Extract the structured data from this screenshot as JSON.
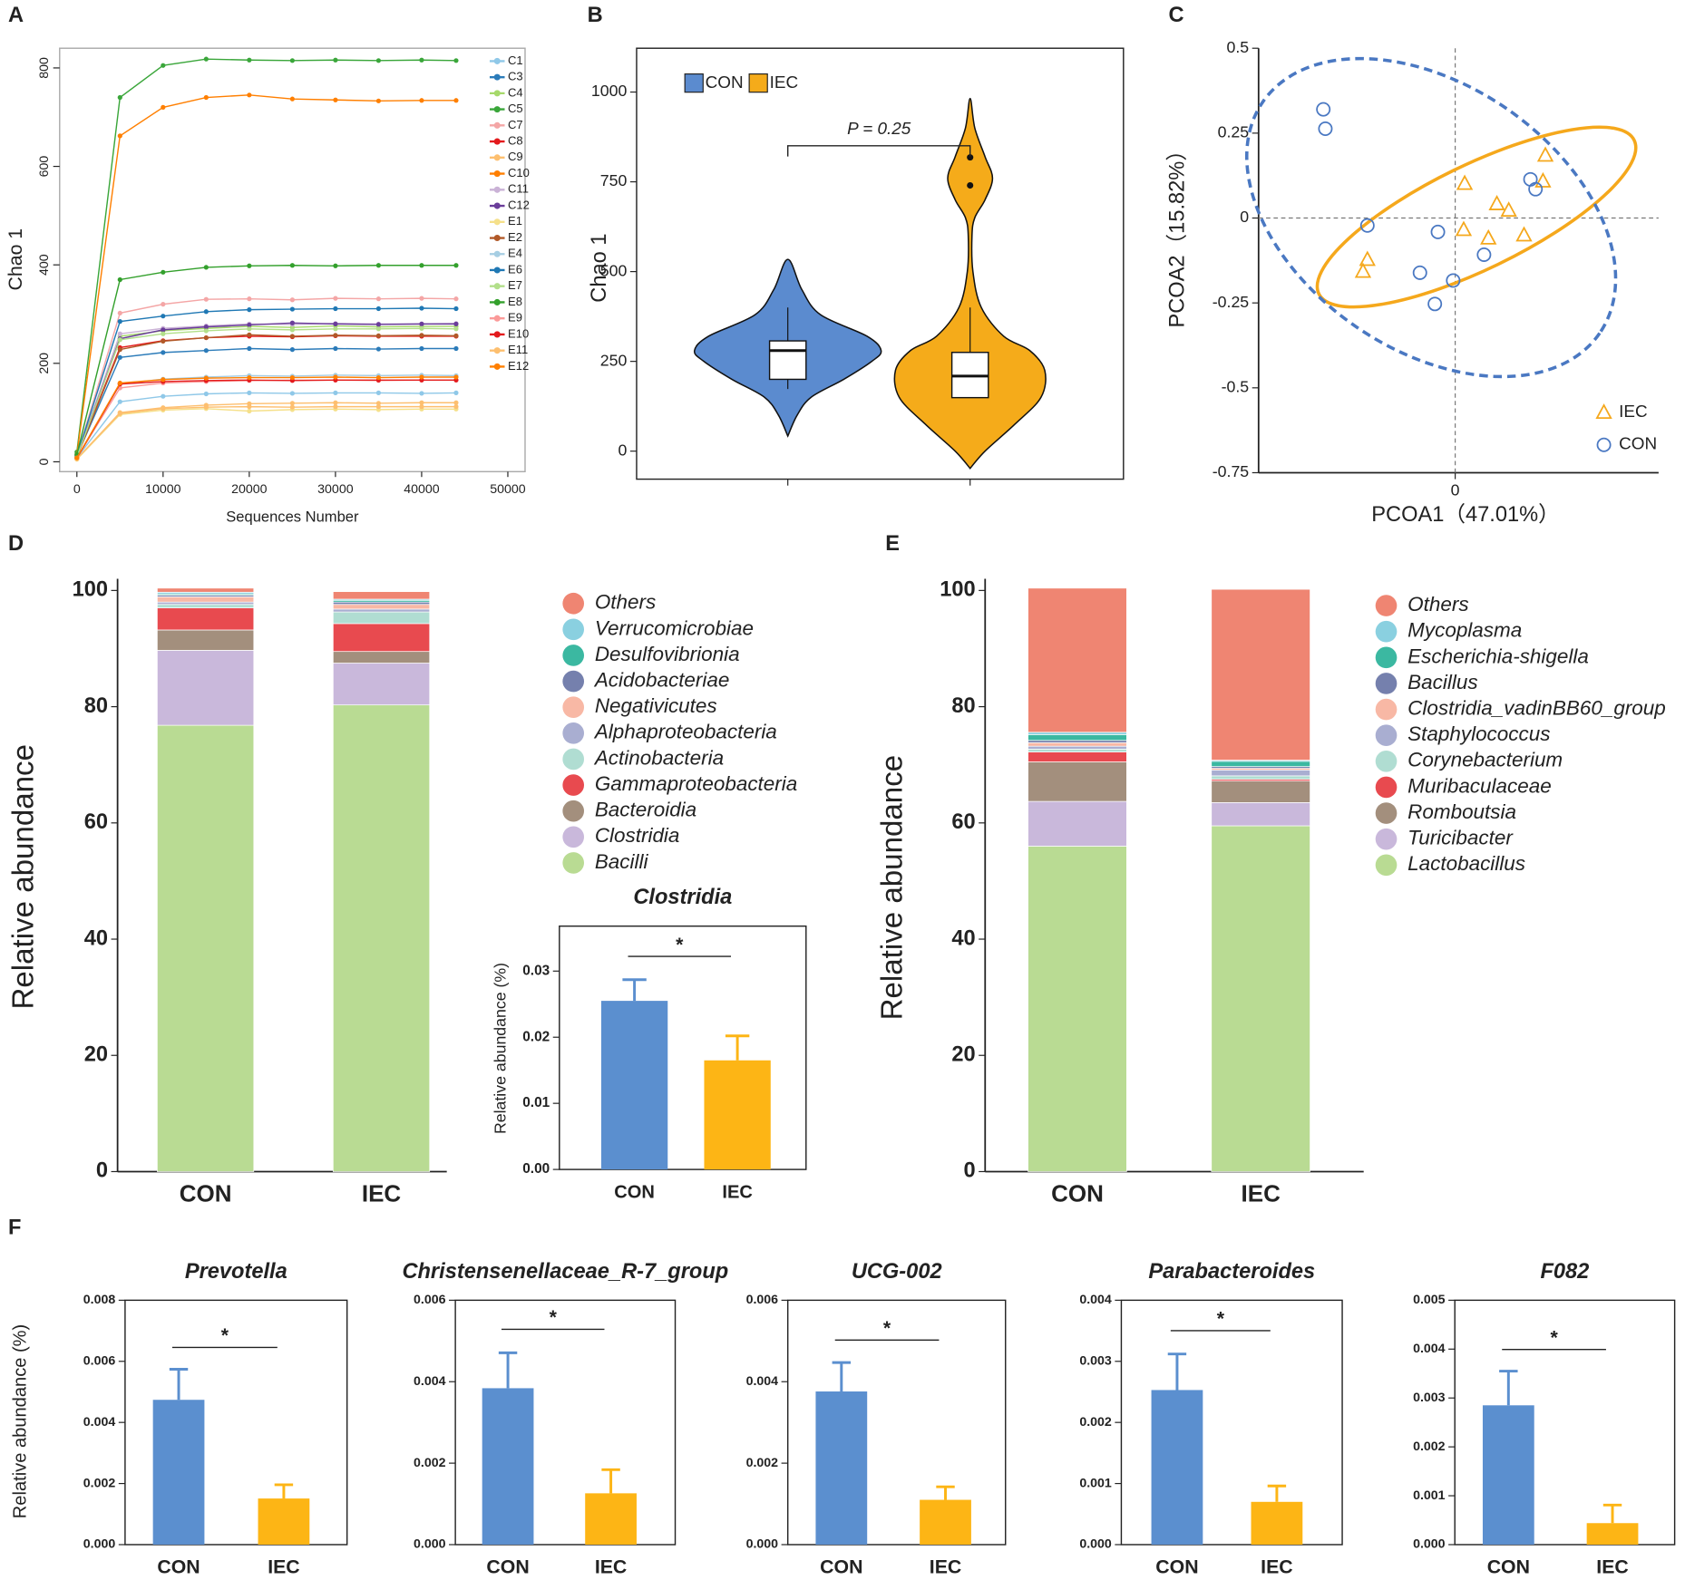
{
  "panels": [
    "A",
    "B",
    "C",
    "D",
    "E",
    "F"
  ],
  "chart_data": [
    {
      "type": "line",
      "xlabel": "Sequences Number",
      "ylabel": "Chao 1",
      "x": [
        0,
        5000,
        10000,
        15000,
        20000,
        25000,
        30000,
        35000,
        40000,
        44000
      ],
      "xlim": [
        -2000,
        52000
      ],
      "xticks": [
        0,
        10000,
        20000,
        30000,
        40000,
        50000
      ],
      "ylim": [
        -20,
        840
      ],
      "yticks": [
        0,
        200,
        400,
        600,
        800
      ],
      "series": [
        {
          "name": "C1",
          "color": "#8fc8e8",
          "values": [
            8,
            122,
            133,
            138,
            140,
            139,
            140,
            140,
            139,
            140
          ]
        },
        {
          "name": "C3",
          "color": "#2b7bb9",
          "values": [
            12,
            212,
            222,
            226,
            230,
            228,
            230,
            229,
            230,
            230
          ]
        },
        {
          "name": "C4",
          "color": "#a6d96a",
          "values": [
            10,
            255,
            266,
            271,
            275,
            273,
            276,
            274,
            275,
            275
          ]
        },
        {
          "name": "C5",
          "color": "#3aa63a",
          "values": [
            20,
            740,
            805,
            818,
            816,
            815,
            816,
            815,
            816,
            815
          ]
        },
        {
          "name": "C7",
          "color": "#f4a6a6",
          "values": [
            12,
            302,
            320,
            330,
            331,
            329,
            332,
            331,
            332,
            331
          ]
        },
        {
          "name": "C8",
          "color": "#e31a1c",
          "values": [
            10,
            232,
            246,
            252,
            255,
            254,
            256,
            255,
            255,
            255
          ]
        },
        {
          "name": "C9",
          "color": "#fdbf6f",
          "values": [
            6,
            100,
            110,
            115,
            118,
            119,
            120,
            119,
            120,
            120
          ]
        },
        {
          "name": "C10",
          "color": "#ff7f00",
          "values": [
            15,
            662,
            720,
            740,
            745,
            737,
            735,
            733,
            734,
            734
          ]
        },
        {
          "name": "C11",
          "color": "#cab2d6",
          "values": [
            10,
            260,
            271,
            276,
            280,
            279,
            281,
            280,
            280,
            281
          ]
        },
        {
          "name": "C12",
          "color": "#6a3d9a",
          "values": [
            11,
            250,
            268,
            274,
            278,
            282,
            280,
            279,
            280,
            280
          ]
        },
        {
          "name": "E1",
          "color": "#f5e08a",
          "values": [
            5,
            96,
            105,
            108,
            103,
            106,
            107,
            106,
            107,
            107
          ]
        },
        {
          "name": "E2",
          "color": "#b15928",
          "values": [
            10,
            228,
            245,
            252,
            258,
            255,
            257,
            256,
            257,
            256
          ]
        },
        {
          "name": "E4",
          "color": "#a6cee3",
          "values": [
            8,
            158,
            168,
            172,
            175,
            174,
            176,
            175,
            176,
            175
          ]
        },
        {
          "name": "E6",
          "color": "#1f78b4",
          "values": [
            12,
            285,
            296,
            305,
            309,
            310,
            311,
            311,
            312,
            311
          ]
        },
        {
          "name": "E7",
          "color": "#b2df8a",
          "values": [
            10,
            248,
            260,
            266,
            270,
            268,
            270,
            270,
            271,
            270
          ]
        },
        {
          "name": "E8",
          "color": "#33a02c",
          "values": [
            15,
            370,
            385,
            395,
            398,
            399,
            398,
            399,
            399,
            399
          ]
        },
        {
          "name": "E9",
          "color": "#fb9a99",
          "values": [
            8,
            150,
            160,
            163,
            165,
            166,
            166,
            165,
            166,
            166
          ]
        },
        {
          "name": "E10",
          "color": "#e31a1c",
          "values": [
            7,
            158,
            163,
            165,
            166,
            165,
            166,
            166,
            166,
            166
          ]
        },
        {
          "name": "E11",
          "color": "#fdbf6f",
          "values": [
            6,
            98,
            108,
            111,
            112,
            111,
            112,
            112,
            112,
            112
          ]
        },
        {
          "name": "E12",
          "color": "#ff7f00",
          "values": [
            8,
            160,
            167,
            170,
            171,
            171,
            172,
            171,
            172,
            172
          ]
        }
      ]
    },
    {
      "type": "violin",
      "ylabel": "Chao 1",
      "annotation": "P = 0.25",
      "ylim": [
        -78,
        1122
      ],
      "yticks": [
        0,
        250,
        500,
        750,
        1000
      ],
      "series": [
        {
          "name": "CON",
          "color": "#5b8bcf",
          "density_y": [
            42,
            100,
            150,
            200,
            250,
            280,
            320,
            380,
            450,
            534
          ],
          "density": [
            0,
            0.1,
            0.25,
            0.6,
            0.9,
            1.0,
            0.85,
            0.35,
            0.15,
            0
          ],
          "q1": 200,
          "median": 280,
          "q3": 307,
          "whisker_low": 173,
          "whisker_high": 400
        },
        {
          "name": "IEC",
          "color": "#f5ab1a",
          "density_y": [
            -48,
            0,
            75,
            150,
            225,
            280,
            320,
            400,
            500,
            600,
            650,
            700,
            760,
            820,
            900,
            982
          ],
          "density": [
            0,
            0.16,
            0.48,
            0.76,
            0.8,
            0.64,
            0.36,
            0.12,
            0.03,
            0.02,
            0.05,
            0.16,
            0.24,
            0.16,
            0.05,
            0
          ],
          "q1": 149,
          "median": 209,
          "q3": 275,
          "whisker_low": 149,
          "whisker_high": 400,
          "outliers": [
            818,
            740
          ]
        }
      ]
    },
    {
      "type": "scatter",
      "xlabel": "PCOA1（47.01%）",
      "ylabel": "PCOA2（15.82%）",
      "xlim": [
        -0.58,
        0.6
      ],
      "xticks": [
        0
      ],
      "ylim": [
        -0.75,
        0.5
      ],
      "yticks": [
        0.5,
        0.25,
        0,
        -0.25,
        -0.5,
        -0.75
      ],
      "zero_lines": true,
      "series": [
        {
          "name": "IEC",
          "color": "#f5a81c",
          "marker": "triangle",
          "ellipse": "solid",
          "x": [
            0.266,
            0.259,
            0.028,
            0.123,
            0.158,
            0.025,
            0.098,
            0.203,
            -0.259,
            -0.272
          ],
          "y": [
            0.184,
            0.108,
            0.101,
            0.041,
            0.022,
            -0.035,
            -0.06,
            -0.051,
            -0.123,
            -0.158
          ]
        },
        {
          "name": "CON",
          "color": "#4a78c2",
          "marker": "circle",
          "ellipse": "dashed",
          "x": [
            -0.389,
            -0.383,
            -0.259,
            -0.104,
            -0.051,
            -0.06,
            -0.006,
            0.085,
            0.222,
            0.237
          ],
          "y": [
            0.32,
            0.263,
            -0.022,
            -0.161,
            -0.041,
            -0.253,
            -0.184,
            -0.108,
            0.114,
            0.085
          ]
        }
      ]
    },
    {
      "type": "stacked_bar",
      "ylabel": "Relative abundance",
      "categories": [
        "CON",
        "IEC"
      ],
      "ylim": [
        0,
        102
      ],
      "yticks": [
        0,
        20,
        40,
        60,
        80,
        100
      ],
      "series": [
        {
          "name": "Bacilli",
          "color": "#b9db93",
          "values": [
            76.8,
            80.3
          ]
        },
        {
          "name": "Clostridia",
          "color": "#c9b8db",
          "values": [
            12.9,
            7.2
          ]
        },
        {
          "name": "Bacteroidia",
          "color": "#a38f7d",
          "values": [
            3.5,
            2.0
          ]
        },
        {
          "name": "Gammaproteobacteria",
          "color": "#e84a4f",
          "values": [
            3.8,
            4.8
          ]
        },
        {
          "name": "Actinobacteria",
          "color": "#b0ddd2",
          "values": [
            0.6,
            2.0
          ]
        },
        {
          "name": "Alphaproteobacteria",
          "color": "#a9aed1",
          "values": [
            0.4,
            0.5
          ]
        },
        {
          "name": "Negativicutes",
          "color": "#f8b8a5",
          "values": [
            0.9,
            0.8
          ]
        },
        {
          "name": "Acidobacteriae",
          "color": "#7580ad",
          "values": [
            0.3,
            0.4
          ]
        },
        {
          "name": "Desulfovibrionia",
          "color": "#3bb8a1",
          "values": [
            0.2,
            0.3
          ]
        },
        {
          "name": "Verrucomicrobiae",
          "color": "#8ad0e0",
          "values": [
            0.3,
            0.2
          ]
        },
        {
          "name": "Others",
          "color": "#ef8572",
          "values": [
            0.7,
            1.3
          ]
        }
      ]
    },
    {
      "type": "bar",
      "title": "Clostridia",
      "ylabel": "Relative abundance (%)",
      "annotation": "*",
      "categories": [
        "CON",
        "IEC"
      ],
      "values": [
        0.0255,
        0.0165
      ],
      "errors": [
        0.0032,
        0.0037
      ],
      "colors": [
        "#5b8fcf",
        "#fdb515"
      ],
      "ylim": [
        0,
        0.0368
      ],
      "yticks": [
        {
          "value": 0,
          "label": "0.00"
        },
        0.01,
        0.02,
        0.03
      ]
    },
    {
      "type": "stacked_bar",
      "ylabel": "Relative abundance",
      "categories": [
        "CON",
        "IEC"
      ],
      "ylim": [
        0,
        102
      ],
      "yticks": [
        0,
        20,
        40,
        60,
        80,
        100
      ],
      "series": [
        {
          "name": "Lactobacillus",
          "color": "#b9db93",
          "values": [
            56.0,
            59.5
          ]
        },
        {
          "name": "Turicibacter",
          "color": "#c9b8db",
          "values": [
            7.7,
            4.0
          ]
        },
        {
          "name": "Romboutsia",
          "color": "#a38f7d",
          "values": [
            6.8,
            3.7
          ]
        },
        {
          "name": "Muribaculaceae",
          "color": "#e84a4f",
          "values": [
            1.7,
            0.3
          ]
        },
        {
          "name": "Corynebacterium",
          "color": "#b0ddd2",
          "values": [
            0.5,
            0.6
          ]
        },
        {
          "name": "Staphylococcus",
          "color": "#a9aed1",
          "values": [
            0.5,
            1.0
          ]
        },
        {
          "name": "Clostridia_vadinBB60_group",
          "color": "#f8b8a5",
          "values": [
            0.6,
            0.3
          ]
        },
        {
          "name": "Bacillus",
          "color": "#7580ad",
          "values": [
            0.4,
            0.3
          ]
        },
        {
          "name": "Escherichia-shigella",
          "color": "#3bb8a1",
          "values": [
            1.0,
            0.9
          ]
        },
        {
          "name": "Mycoplasma",
          "color": "#8ad0e0",
          "values": [
            0.4,
            0.2
          ]
        },
        {
          "name": "Others",
          "color": "#ef8572",
          "values": [
            24.8,
            29.4
          ]
        }
      ]
    },
    {
      "type": "bar",
      "title": "Prevotella",
      "ylabel": "Relative abundance (%)",
      "annotation": "*",
      "categories": [
        "CON",
        "IEC"
      ],
      "values": [
        0.00474,
        0.00151
      ],
      "errors": [
        0.001,
        0.00045
      ],
      "colors": [
        "#5b8fcf",
        "#fdb515"
      ],
      "ylim": [
        0,
        0.008
      ],
      "yticks": [
        {
          "value": 0,
          "label": "0.000"
        },
        0.002,
        0.004,
        0.006,
        0.008
      ]
    },
    {
      "type": "bar",
      "title": "Christensenellaceae_R-7_group",
      "annotation": "*",
      "categories": [
        "CON",
        "IEC"
      ],
      "values": [
        0.00384,
        0.00126
      ],
      "errors": [
        0.00087,
        0.00058
      ],
      "colors": [
        "#5b8fcf",
        "#fdb515"
      ],
      "ylim": [
        0,
        0.006
      ],
      "yticks": [
        {
          "value": 0,
          "label": "0.000"
        },
        0.002,
        0.004,
        0.006
      ]
    },
    {
      "type": "bar",
      "title": "UCG-002",
      "annotation": "*",
      "categories": [
        "CON",
        "IEC"
      ],
      "values": [
        0.00376,
        0.0011
      ],
      "errors": [
        0.00071,
        0.00032
      ],
      "colors": [
        "#5b8fcf",
        "#fdb515"
      ],
      "ylim": [
        0,
        0.006
      ],
      "yticks": [
        {
          "value": 0,
          "label": "0.000"
        },
        0.002,
        0.004,
        0.006
      ]
    },
    {
      "type": "bar",
      "title": "Parabacteroides",
      "annotation": "*",
      "categories": [
        "CON",
        "IEC"
      ],
      "values": [
        0.00253,
        0.0007
      ],
      "errors": [
        0.00059,
        0.00026
      ],
      "colors": [
        "#5b8fcf",
        "#fdb515"
      ],
      "ylim": [
        0,
        0.004
      ],
      "yticks": [
        {
          "value": 0,
          "label": "0.000"
        },
        0.001,
        0.002,
        0.003,
        0.004
      ]
    },
    {
      "type": "bar",
      "title": "F082",
      "annotation": "*",
      "categories": [
        "CON",
        "IEC"
      ],
      "values": [
        0.00285,
        0.00044
      ],
      "errors": [
        0.0007,
        0.00037
      ],
      "colors": [
        "#5b8fcf",
        "#fdb515"
      ],
      "ylim": [
        0,
        0.005
      ],
      "yticks": [
        {
          "value": 0,
          "label": "0.000"
        },
        0.001,
        0.002,
        0.003,
        0.004,
        0.005
      ]
    }
  ]
}
